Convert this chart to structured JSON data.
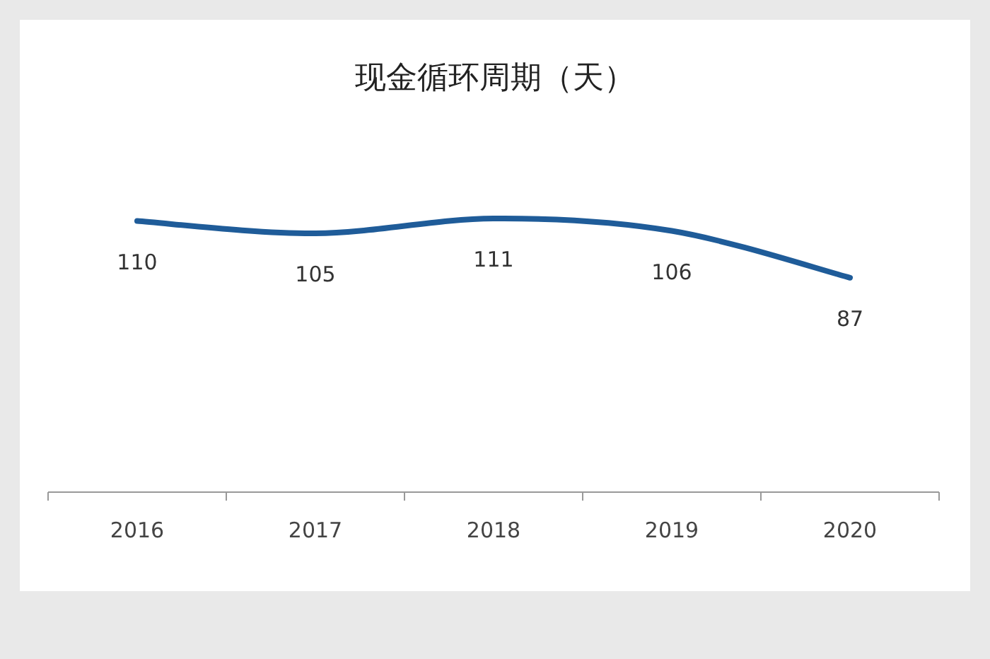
{
  "chart_data": {
    "type": "line",
    "title": "现金循环周期（天）",
    "categories": [
      "2016",
      "2017",
      "2018",
      "2019",
      "2020"
    ],
    "series": [
      {
        "color": "#1f5c99",
        "values": [
          110,
          105,
          111,
          106,
          87
        ]
      }
    ],
    "data_labels": true,
    "marker": "none",
    "grid": false
  }
}
